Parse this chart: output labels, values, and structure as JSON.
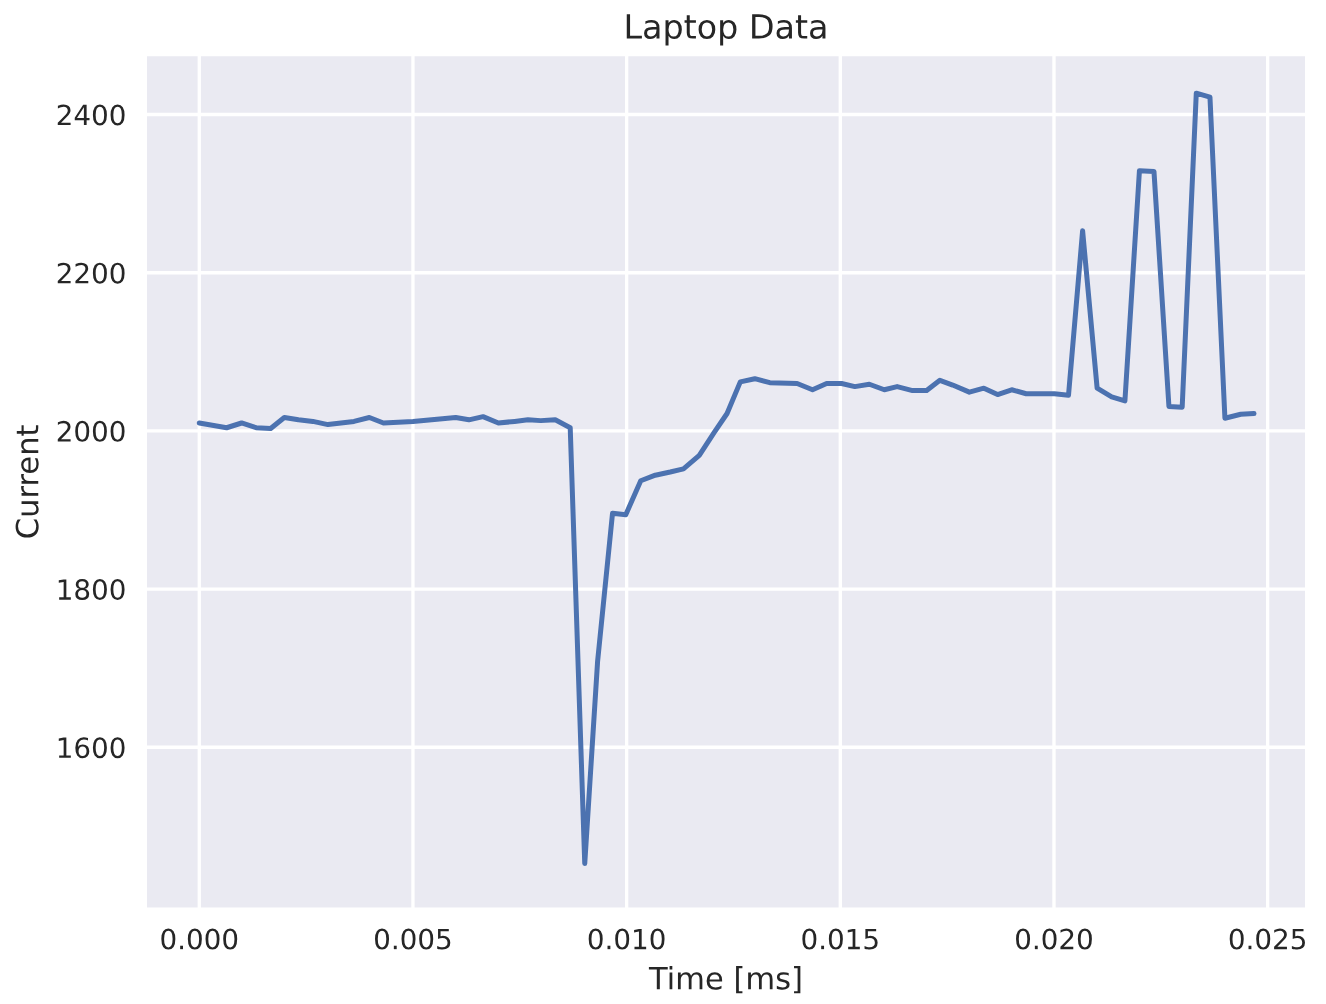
{
  "chart_data": {
    "type": "line",
    "title": "Laptop Data",
    "xlabel": "Time [ms]",
    "ylabel": "Current",
    "x": [
      0.0,
      0.00064,
      0.00099,
      0.00133,
      0.00167,
      0.00199,
      0.00232,
      0.00266,
      0.00301,
      0.00362,
      0.00398,
      0.00431,
      0.005,
      0.006,
      0.00631,
      0.00664,
      0.007,
      0.00738,
      0.00769,
      0.00799,
      0.00833,
      0.00868,
      0.00902,
      0.00932,
      0.00967,
      0.00998,
      0.01033,
      0.01067,
      0.01102,
      0.01133,
      0.0117,
      0.01194,
      0.01205,
      0.01235,
      0.01266,
      0.013,
      0.01335,
      0.01399,
      0.01435,
      0.01468,
      0.01503,
      0.01534,
      0.01568,
      0.01603,
      0.01633,
      0.01669,
      0.01702,
      0.01733,
      0.01763,
      0.01802,
      0.01836,
      0.01868,
      0.01901,
      0.01935,
      0.02001,
      0.02034,
      0.02067,
      0.02101,
      0.02135,
      0.02166,
      0.022,
      0.02234,
      0.02269,
      0.023,
      0.02333,
      0.02365,
      0.024,
      0.02437,
      0.02468
    ],
    "series": [
      {
        "color": "#4c72b0",
        "values": [
          2010,
          2004,
          2010,
          2004,
          2003,
          2017,
          2014,
          2012,
          2008,
          2012,
          2017,
          2010,
          2012,
          2017,
          2014,
          2018,
          2010,
          2012,
          2014,
          2013,
          2014,
          2004,
          1453,
          1708,
          1896,
          1894,
          1937,
          1944,
          1948,
          1952,
          1969,
          1989,
          1998,
          2022,
          2062,
          2066,
          2061,
          2060,
          2052,
          2060,
          2060,
          2056,
          2059,
          2052,
          2056,
          2051,
          2051,
          2064,
          2058,
          2049,
          2054,
          2046,
          2052,
          2047,
          2047,
          2045,
          2253,
          2054,
          2043,
          2038,
          2329,
          2328,
          2031,
          2030,
          2427,
          2422,
          2016,
          2021,
          2022
        ]
      }
    ],
    "xlim": [
      -0.00125,
      0.0259
    ],
    "ylim": [
      1396,
      2475
    ],
    "xticks": [
      {
        "value": 0.0,
        "label": "0.000"
      },
      {
        "value": 0.005,
        "label": "0.005"
      },
      {
        "value": 0.01,
        "label": "0.010"
      },
      {
        "value": 0.015,
        "label": "0.015"
      },
      {
        "value": 0.02,
        "label": "0.020"
      },
      {
        "value": 0.025,
        "label": "0.025"
      }
    ],
    "yticks": [
      1600,
      1800,
      2000,
      2200,
      2400
    ],
    "grid": true
  }
}
